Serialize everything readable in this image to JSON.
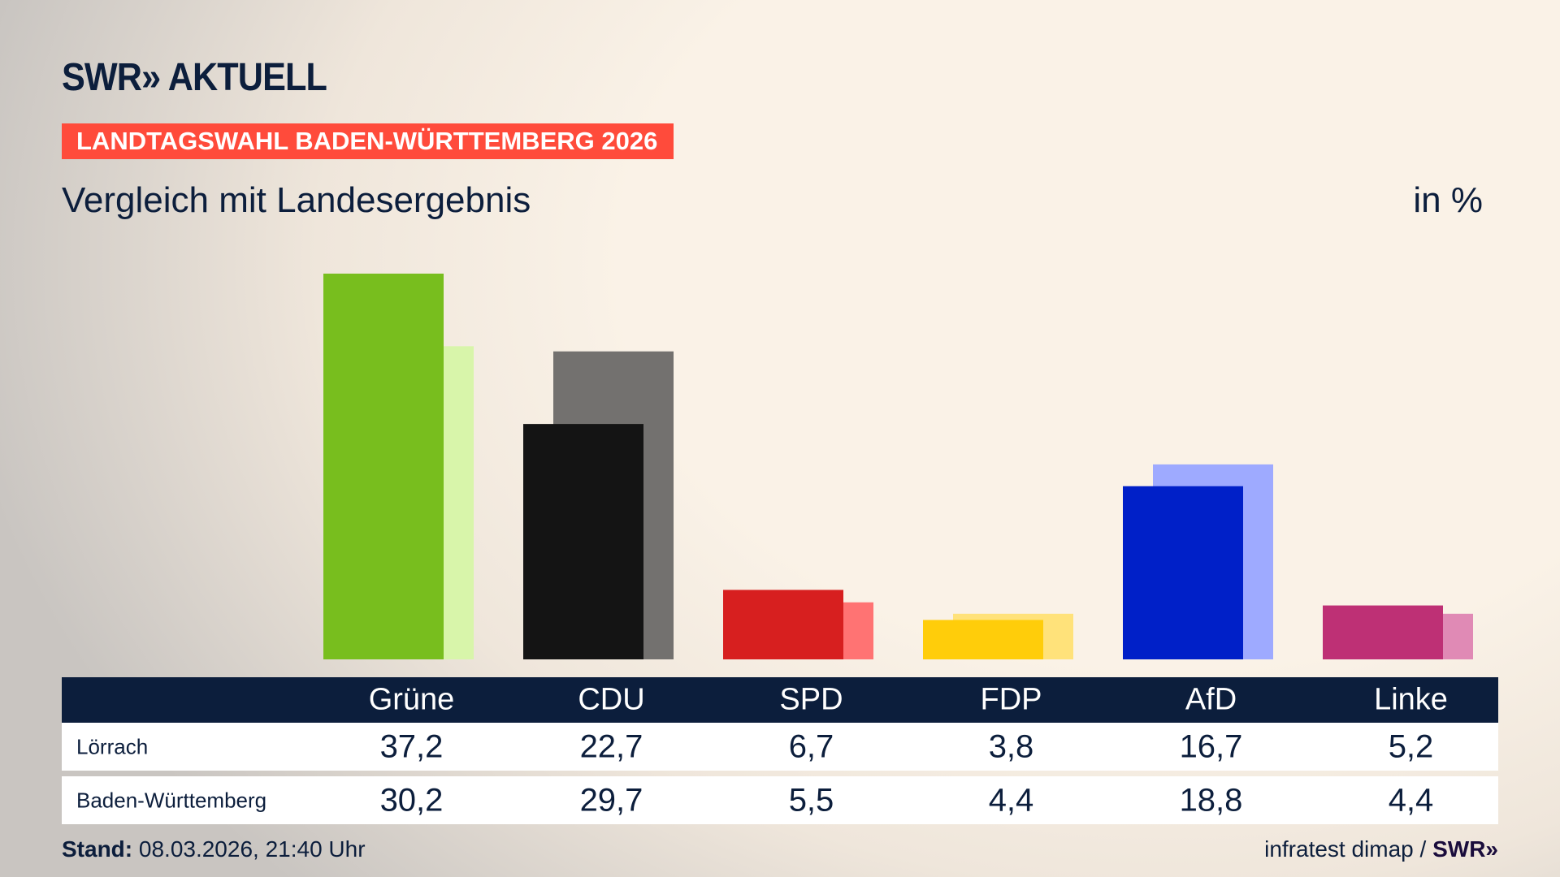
{
  "header": {
    "logo": "SWR» AKTUELL",
    "kicker": "LANDTAGSWAHL BADEN-WÜRTTEMBERG 2026",
    "subtitle": "Vergleich mit Landesergebnis",
    "unit": "in %"
  },
  "chart_data": {
    "type": "bar",
    "categories": [
      "Grüne",
      "CDU",
      "SPD",
      "FDP",
      "AfD",
      "Linke"
    ],
    "series": [
      {
        "name": "Lörrach",
        "values": [
          37.2,
          22.7,
          6.7,
          3.8,
          16.7,
          5.2
        ],
        "display": [
          "37,2",
          "22,7",
          "6,7",
          "3,8",
          "16,7",
          "5,2"
        ],
        "colors": [
          "#78be1e",
          "#141414",
          "#d71f1f",
          "#ffcd0a",
          "#0020c8",
          "#be3075"
        ]
      },
      {
        "name": "Baden-Württemberg",
        "values": [
          30.2,
          29.7,
          5.5,
          4.4,
          18.8,
          4.4
        ],
        "display": [
          "30,2",
          "29,7",
          "5,5",
          "4,4",
          "18,8",
          "4,4"
        ],
        "colors": [
          "#d8f5aa",
          "#73716f",
          "#ff7373",
          "#ffe27a",
          "#9eaaff",
          "#e08ab5"
        ]
      }
    ],
    "ylim": [
      0,
      40
    ],
    "grid": false
  },
  "footer": {
    "stand_label": "Stand:",
    "stand_value": " 08.03.2026, 21:40 Uhr",
    "source": "infratest dimap / ",
    "source_logo": "SWR»"
  }
}
